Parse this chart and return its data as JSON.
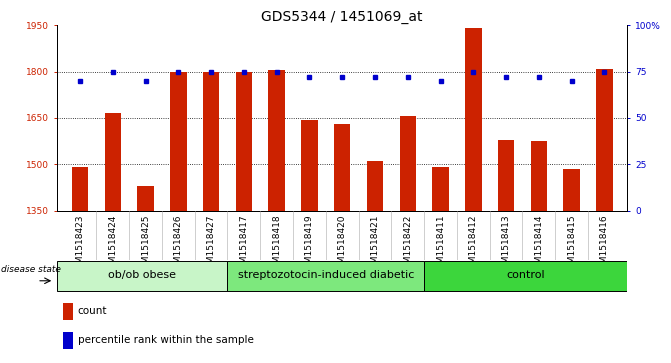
{
  "title": "GDS5344 / 1451069_at",
  "samples": [
    "GSM1518423",
    "GSM1518424",
    "GSM1518425",
    "GSM1518426",
    "GSM1518427",
    "GSM1518417",
    "GSM1518418",
    "GSM1518419",
    "GSM1518420",
    "GSM1518421",
    "GSM1518422",
    "GSM1518411",
    "GSM1518412",
    "GSM1518413",
    "GSM1518414",
    "GSM1518415",
    "GSM1518416"
  ],
  "counts": [
    1490,
    1665,
    1430,
    1800,
    1800,
    1800,
    1805,
    1645,
    1630,
    1510,
    1655,
    1490,
    1940,
    1580,
    1575,
    1485,
    1810
  ],
  "percentile_ranks": [
    70,
    75,
    70,
    75,
    75,
    75,
    75,
    72,
    72,
    72,
    72,
    70,
    75,
    72,
    72,
    70,
    75
  ],
  "groups": [
    {
      "label": "ob/ob obese",
      "start": 0,
      "end": 5,
      "color": "#c8f5c8"
    },
    {
      "label": "streptozotocin-induced diabetic",
      "start": 5,
      "end": 11,
      "color": "#7de87d"
    },
    {
      "label": "control",
      "start": 11,
      "end": 17,
      "color": "#3cd63c"
    }
  ],
  "ylim_left": [
    1350,
    1950
  ],
  "ylim_right": [
    0,
    100
  ],
  "yticks_left": [
    1350,
    1500,
    1650,
    1800,
    1950
  ],
  "yticks_right": [
    0,
    25,
    50,
    75,
    100
  ],
  "bar_color": "#cc2200",
  "dot_color": "#0000cc",
  "bg_color": "#d8d8d8",
  "plot_bg": "#ffffff",
  "grid_color": "#000000",
  "title_fontsize": 10,
  "tick_fontsize": 6.5,
  "label_fontsize": 8,
  "group_label_fontsize": 8
}
